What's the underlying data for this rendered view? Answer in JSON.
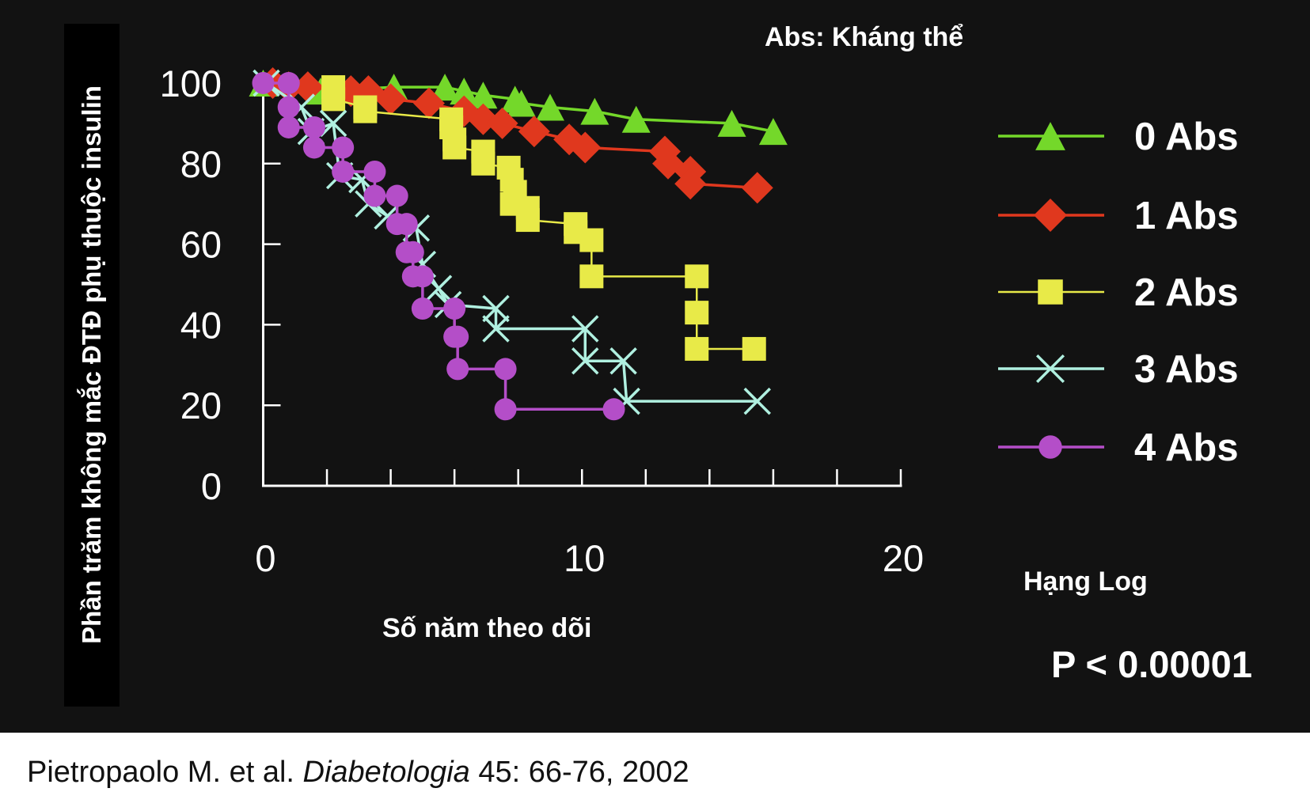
{
  "chart_data": {
    "type": "line",
    "subtype": "kaplan-meier step",
    "title": "Abs: Kháng thể",
    "xlabel": "Số năm theo dõi",
    "ylabel": "Phần trăm không mắc ĐTĐ phụ thuộc insulin",
    "xlim": [
      0,
      20
    ],
    "ylim": [
      0,
      100
    ],
    "x_ticks": [
      0,
      10,
      20
    ],
    "x_minor_ticks": [
      2,
      4,
      6,
      8,
      10,
      12,
      14,
      16,
      18,
      20
    ],
    "y_ticks": [
      0,
      20,
      40,
      60,
      80,
      100
    ],
    "grid": false,
    "legend_position": "right",
    "series": [
      {
        "name": "0 Abs",
        "marker": "triangle",
        "color": "#74d82a",
        "points": [
          [
            0,
            100
          ],
          [
            1.8,
            98
          ],
          [
            4.1,
            99
          ],
          [
            5.7,
            99
          ],
          [
            6.3,
            98
          ],
          [
            6.9,
            97
          ],
          [
            7.9,
            96
          ],
          [
            8.1,
            95
          ],
          [
            9.0,
            94
          ],
          [
            10.4,
            93
          ],
          [
            11.7,
            91
          ],
          [
            14.7,
            90
          ],
          [
            16.0,
            88
          ]
        ]
      },
      {
        "name": "1 Abs",
        "marker": "diamond",
        "color": "#e0381e",
        "points": [
          [
            0.3,
            100
          ],
          [
            0.8,
            99
          ],
          [
            1.4,
            99
          ],
          [
            2.75,
            98
          ],
          [
            3.3,
            98
          ],
          [
            4.0,
            96
          ],
          [
            5.2,
            95
          ],
          [
            6.3,
            93
          ],
          [
            6.9,
            91
          ],
          [
            7.5,
            90
          ],
          [
            8.5,
            88
          ],
          [
            9.6,
            86
          ],
          [
            10.1,
            84
          ],
          [
            12.6,
            83
          ],
          [
            12.7,
            80
          ],
          [
            13.4,
            78
          ],
          [
            13.4,
            75
          ],
          [
            15.5,
            74
          ]
        ]
      },
      {
        "name": "2 Abs",
        "marker": "square",
        "color": "#e8ea48",
        "points": [
          [
            2.2,
            99
          ],
          [
            2.2,
            96
          ],
          [
            3.2,
            94
          ],
          [
            3.2,
            93
          ],
          [
            5.9,
            91
          ],
          [
            5.9,
            89
          ],
          [
            6.0,
            86
          ],
          [
            6.0,
            84
          ],
          [
            6.9,
            83
          ],
          [
            6.9,
            80
          ],
          [
            7.7,
            79
          ],
          [
            7.8,
            76
          ],
          [
            7.9,
            73
          ],
          [
            7.8,
            70
          ],
          [
            8.3,
            69
          ],
          [
            8.3,
            66
          ],
          [
            9.8,
            65
          ],
          [
            9.8,
            63
          ],
          [
            10.3,
            61
          ],
          [
            10.3,
            52
          ],
          [
            13.6,
            52
          ],
          [
            13.6,
            43
          ],
          [
            13.6,
            34
          ],
          [
            15.4,
            34
          ]
        ]
      },
      {
        "name": "3 Abs",
        "marker": "x",
        "color": "#b0f0e0",
        "points": [
          [
            0.1,
            100
          ],
          [
            1.2,
            94
          ],
          [
            1.5,
            88
          ],
          [
            2.2,
            90
          ],
          [
            2.4,
            77
          ],
          [
            3.1,
            76
          ],
          [
            3.3,
            70
          ],
          [
            3.9,
            67
          ],
          [
            4.8,
            64
          ],
          [
            5.0,
            55
          ],
          [
            5.5,
            49
          ],
          [
            5.8,
            45
          ],
          [
            7.3,
            44
          ],
          [
            7.3,
            39
          ],
          [
            10.1,
            39
          ],
          [
            10.1,
            31
          ],
          [
            11.3,
            31
          ],
          [
            11.4,
            21
          ],
          [
            15.5,
            21
          ]
        ]
      },
      {
        "name": "4 Abs",
        "marker": "circle",
        "color": "#b44ec8",
        "points": [
          [
            0.0,
            100
          ],
          [
            0.8,
            100
          ],
          [
            0.8,
            94
          ],
          [
            0.8,
            89
          ],
          [
            1.6,
            89
          ],
          [
            1.6,
            84
          ],
          [
            2.5,
            84
          ],
          [
            2.5,
            78
          ],
          [
            3.5,
            78
          ],
          [
            3.5,
            72
          ],
          [
            4.2,
            72
          ],
          [
            4.2,
            65
          ],
          [
            4.5,
            65
          ],
          [
            4.5,
            58
          ],
          [
            4.7,
            58
          ],
          [
            4.7,
            52
          ],
          [
            5.0,
            52
          ],
          [
            5.0,
            44
          ],
          [
            6.0,
            44
          ],
          [
            6.0,
            37
          ],
          [
            6.1,
            37
          ],
          [
            6.1,
            29
          ],
          [
            7.6,
            29
          ],
          [
            7.6,
            19
          ],
          [
            11.0,
            19
          ]
        ]
      }
    ],
    "annotations": [
      "Hạng Log",
      "P < 0.00001"
    ]
  },
  "stats": {
    "test": "Hạng Log",
    "p_value": "P < 0.00001"
  },
  "citation": {
    "authors": "Pietropaolo M. et al.",
    "journal": "Diabetologia",
    "details": "45: 66-76, 2002"
  },
  "colors": {
    "background": "#121212",
    "axis": "#ffffff",
    "text": "#ffffff"
  }
}
